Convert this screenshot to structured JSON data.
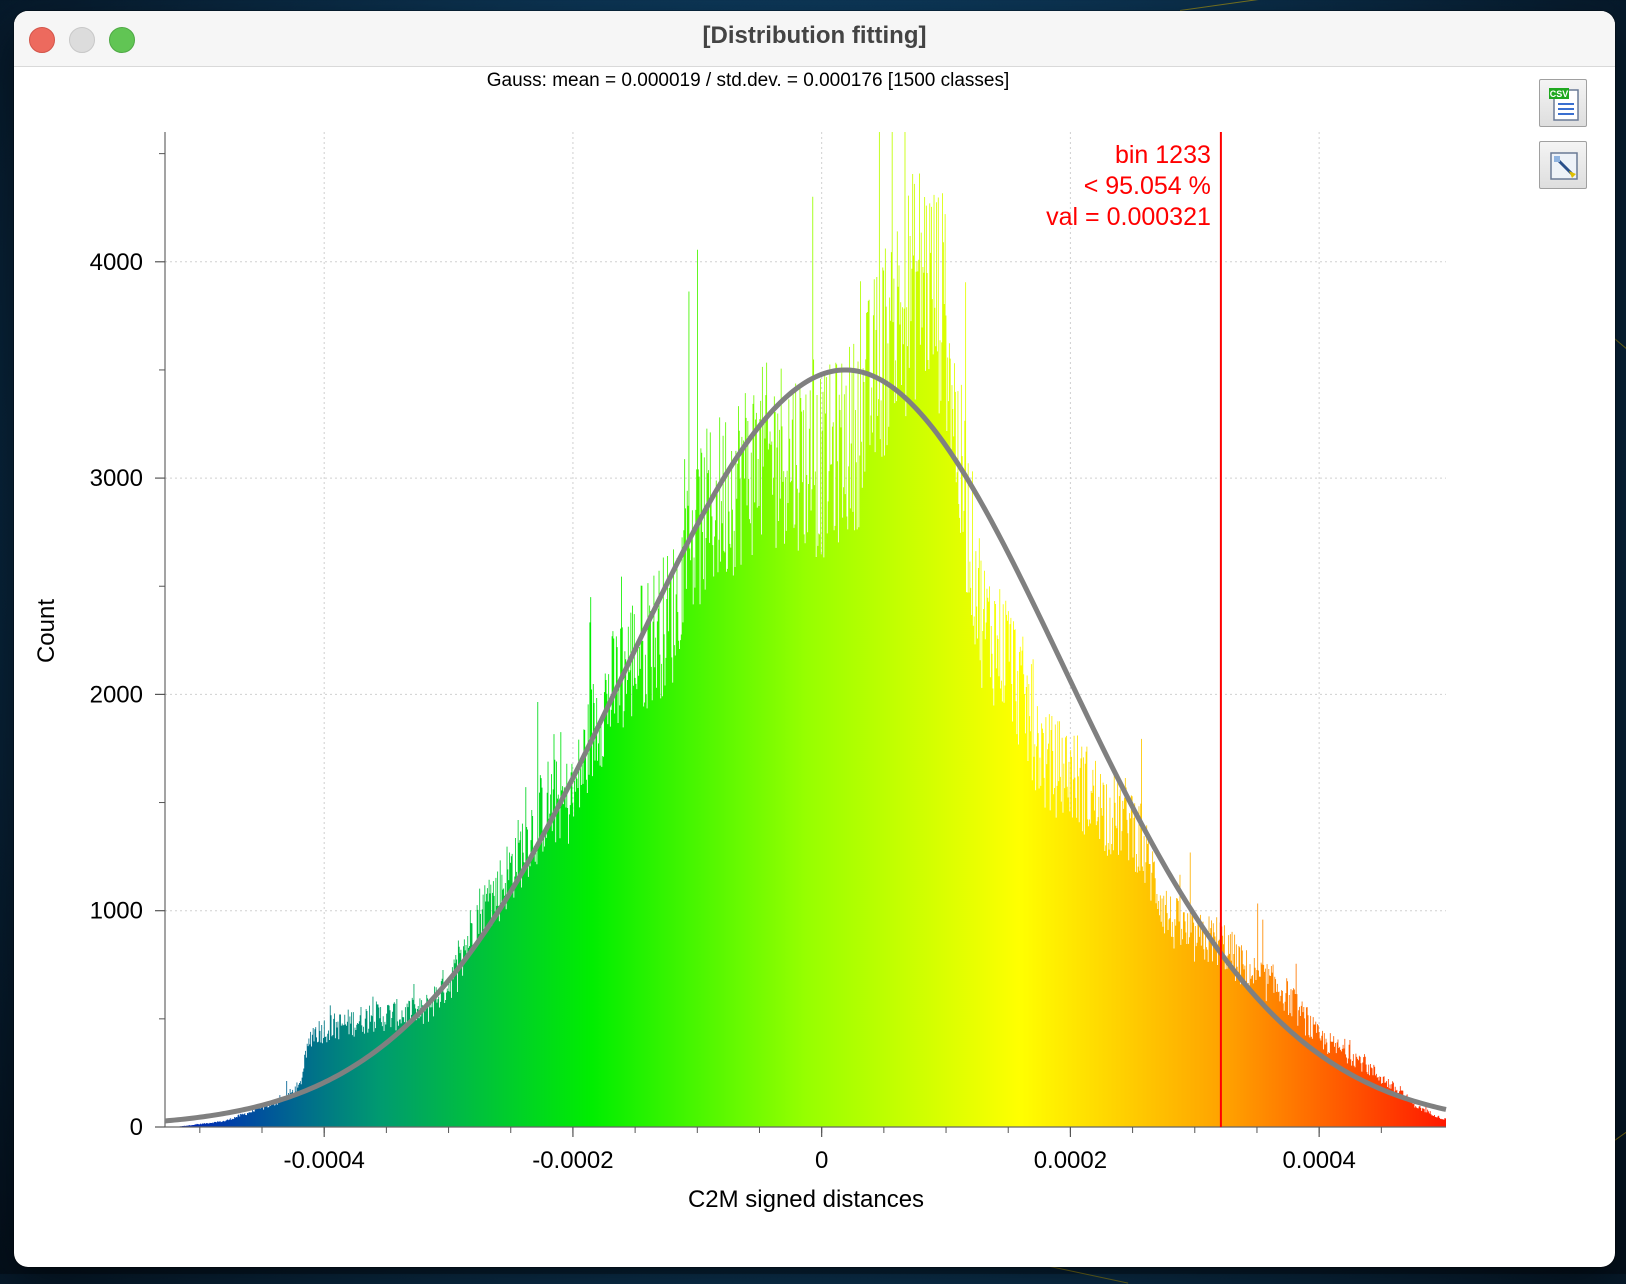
{
  "window": {
    "title": "[Distribution fitting]"
  },
  "toolbar": {
    "export_csv_icon": "csv-export-icon",
    "export_image_icon": "image-export-icon"
  },
  "chart_data": {
    "type": "bar",
    "subtitle": "Gauss: mean = 0.000019 / std.dev. = 0.000176 [1500 classes]",
    "xlabel": "C2M signed distances",
    "ylabel": "Count",
    "xlim": [
      -0.000528,
      0.000502
    ],
    "ylim": [
      0,
      4600
    ],
    "x_ticks": [
      {
        "value": -0.0004,
        "label": "-0.0004"
      },
      {
        "value": -0.0002,
        "label": "-0.0002"
      },
      {
        "value": 0,
        "label": "0"
      },
      {
        "value": 0.0002,
        "label": "0.0002"
      },
      {
        "value": 0.0004,
        "label": "0.0004"
      }
    ],
    "y_ticks": [
      {
        "value": 0,
        "label": "0"
      },
      {
        "value": 1000,
        "label": "1000"
      },
      {
        "value": 2000,
        "label": "2000"
      },
      {
        "value": 3000,
        "label": "3000"
      },
      {
        "value": 4000,
        "label": "4000"
      }
    ],
    "grid": true,
    "bins": 1500,
    "histogram_envelope": {
      "x": [
        -0.00052,
        -0.00048,
        -0.00044,
        -0.00042,
        -0.00041,
        -0.00036,
        -0.00032,
        -0.00029,
        -0.00028,
        -0.00026,
        -0.00022,
        -0.0002,
        -0.00018,
        -0.00015,
        -0.00012,
        -0.0001,
        -6e-05,
        -3e-05,
        0.0,
        3e-05,
        5e-05,
        8e-05,
        0.0001,
        0.00011,
        0.00013,
        0.00015,
        0.00018,
        0.0002,
        0.00023,
        0.00025,
        0.00028,
        0.0003,
        0.00032,
        0.00034,
        0.00037,
        0.0004,
        0.00043,
        0.00046,
        0.00048,
        0.0005
      ],
      "y": [
        0,
        30,
        120,
        200,
        480,
        560,
        580,
        820,
        1050,
        1200,
        1650,
        1650,
        2100,
        2400,
        2600,
        3050,
        3350,
        3450,
        3350,
        3550,
        3950,
        4350,
        4150,
        3400,
        2550,
        2400,
        1850,
        1800,
        1600,
        1550,
        1050,
        950,
        950,
        800,
        700,
        450,
        350,
        200,
        100,
        40
      ]
    },
    "gauss_fit": {
      "mean": 1.9e-05,
      "std": 0.000176,
      "peak": 3500,
      "color": "#808080"
    },
    "colormap": [
      "#0018c0",
      "#009a70",
      "#00ee00",
      "#96ff00",
      "#ffff00",
      "#ff9e00",
      "#ff1800"
    ],
    "marker": {
      "x": 0.000321,
      "color": "#ff0000",
      "lines": [
        "bin 1233",
        "< 95.054 %",
        "val = 0.000321"
      ]
    }
  }
}
